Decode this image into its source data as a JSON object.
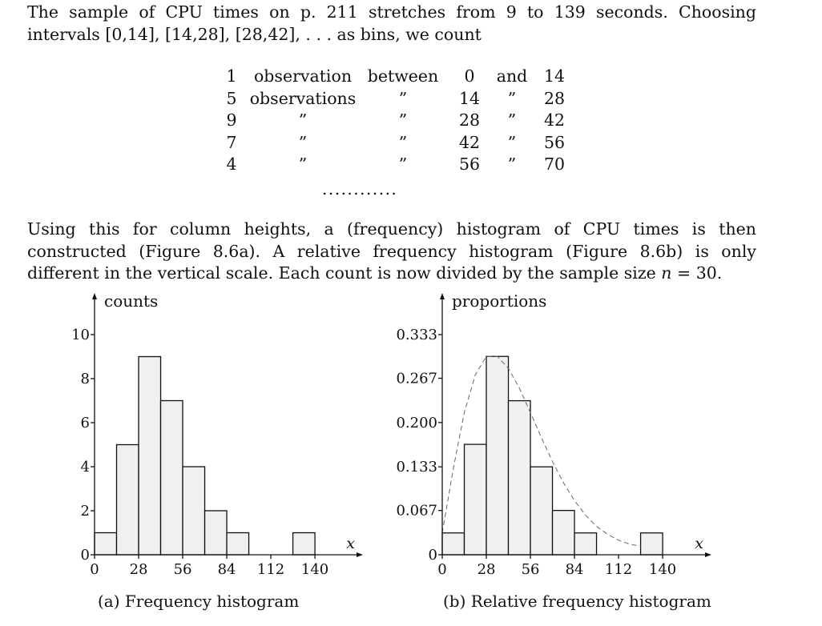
{
  "paragraph1": "The sample of CPU times on p. 211 stretches from 9 to 139 seconds. Choosing intervals [0,14], [14,28], [28,42], . . . as bins, we count",
  "count_table": {
    "rows": [
      [
        "1",
        "observation",
        "between",
        "0",
        "and",
        "14"
      ],
      [
        "5",
        "observations",
        "”",
        "14",
        "”",
        "28"
      ],
      [
        "9",
        "”",
        "”",
        "28",
        "”",
        "42"
      ],
      [
        "7",
        "”",
        "”",
        "42",
        "”",
        "56"
      ],
      [
        "4",
        "”",
        "”",
        "56",
        "”",
        "70"
      ]
    ],
    "continuation": "............"
  },
  "paragraph2": {
    "text_before_n": "Using this for column heights, a (frequency) histogram of CPU times is then constructed (Figure 8.6a). A relative frequency histogram (Figure 8.6b) is only different in the vertical scale. Each count is now divided by the sample size ",
    "n_symbol": "n",
    "text_after_n": " = 30."
  },
  "chart_data": [
    {
      "type": "bar",
      "caption": "(a) Frequency histogram",
      "ylabel": "counts",
      "xlabel": "x",
      "bin_edges": [
        0,
        14,
        28,
        42,
        56,
        70,
        84,
        98,
        112,
        126,
        140
      ],
      "values": [
        1,
        5,
        9,
        7,
        4,
        2,
        1,
        0,
        0,
        1
      ],
      "xlim": [
        0,
        154
      ],
      "ylim": [
        0,
        10
      ],
      "xticks": [
        "0",
        "28",
        "56",
        "84",
        "112",
        "140"
      ],
      "yticks": [
        "0",
        "2",
        "4",
        "6",
        "8",
        "10"
      ]
    },
    {
      "type": "bar",
      "caption": "(b) Relative frequency histogram",
      "ylabel": "proportions",
      "xlabel": "x",
      "bin_edges": [
        0,
        14,
        28,
        42,
        56,
        70,
        84,
        98,
        112,
        126,
        140
      ],
      "values": [
        0.033,
        0.167,
        0.3,
        0.233,
        0.133,
        0.067,
        0.033,
        0,
        0,
        0.033
      ],
      "xlim": [
        0,
        154
      ],
      "ylim": [
        0,
        0.333
      ],
      "xticks": [
        "0",
        "28",
        "56",
        "84",
        "112",
        "140"
      ],
      "yticks": [
        "0",
        "0.067",
        "0.133",
        "0.200",
        "0.267",
        "0.333"
      ],
      "curve": {
        "style": "dashed",
        "x": [
          0,
          7,
          14,
          21,
          28,
          35,
          42,
          49,
          56,
          63,
          70,
          77,
          84,
          91,
          98,
          105,
          112,
          119,
          126
        ],
        "y": [
          0.033,
          0.13,
          0.215,
          0.272,
          0.3,
          0.3,
          0.282,
          0.252,
          0.215,
          0.177,
          0.141,
          0.109,
          0.082,
          0.06,
          0.043,
          0.031,
          0.022,
          0.016,
          0.013
        ]
      }
    }
  ]
}
